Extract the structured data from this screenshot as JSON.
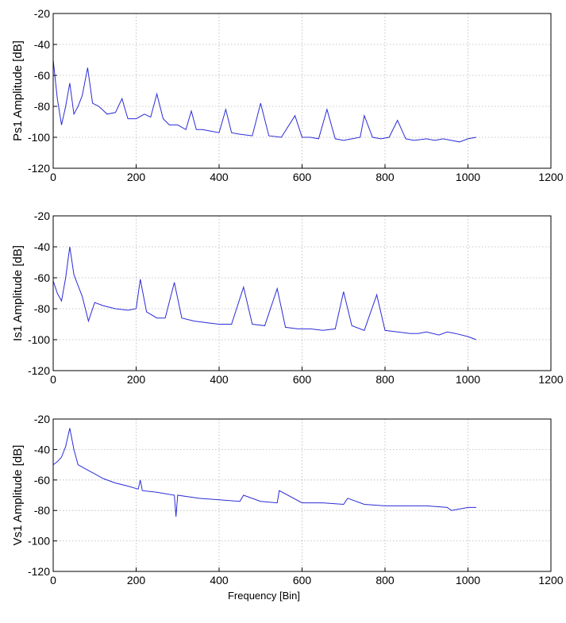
{
  "chart_data": [
    {
      "type": "line",
      "ylabel": "Ps1 Amplitude [dB]",
      "xlabel": "",
      "xlim": [
        0,
        1200
      ],
      "ylim": [
        -120,
        -20
      ],
      "xticks": [
        "0",
        "200",
        "400",
        "600",
        "800",
        "1000",
        "1200"
      ],
      "yticks": [
        "-20",
        "-40",
        "-60",
        "-80",
        "-100",
        "-120"
      ],
      "grid": true,
      "line_color": "#2b2bd6",
      "series": [
        {
          "x": [
            0,
            10,
            20,
            30,
            40,
            50,
            60,
            70,
            83,
            95,
            110,
            130,
            150,
            166,
            180,
            200,
            220,
            235,
            250,
            265,
            280,
            300,
            320,
            333,
            345,
            360,
            380,
            400,
            416,
            430,
            450,
            480,
            500,
            520,
            550,
            583,
            600,
            620,
            640,
            660,
            680,
            700,
            720,
            740,
            750,
            770,
            790,
            810,
            830,
            850,
            870,
            900,
            920,
            940,
            960,
            980,
            1000,
            1020
          ],
          "y": [
            -50,
            -75,
            -92,
            -80,
            -65,
            -85,
            -80,
            -73,
            -55,
            -78,
            -80,
            -85,
            -84,
            -75,
            -88,
            -88,
            -85,
            -87,
            -72,
            -88,
            -92,
            -92,
            -95,
            -83,
            -95,
            -95,
            -96,
            -97,
            -82,
            -97,
            -98,
            -99,
            -78,
            -99,
            -100,
            -86,
            -100,
            -100,
            -101,
            -82,
            -101,
            -102,
            -101,
            -100,
            -86,
            -100,
            -101,
            -100,
            -89,
            -101,
            -102,
            -101,
            -102,
            -101,
            -102,
            -103,
            -101,
            -100
          ]
        }
      ]
    },
    {
      "type": "line",
      "ylabel": "Is1 Amplitude [dB]",
      "xlabel": "",
      "xlim": [
        0,
        1200
      ],
      "ylim": [
        -120,
        -20
      ],
      "xticks": [
        "0",
        "200",
        "400",
        "600",
        "800",
        "1000",
        "1200"
      ],
      "yticks": [
        "-20",
        "-40",
        "-60",
        "-80",
        "-100",
        "-120"
      ],
      "grid": true,
      "line_color": "#2b2bd6",
      "series": [
        {
          "x": [
            0,
            10,
            20,
            30,
            40,
            50,
            60,
            70,
            85,
            100,
            120,
            150,
            180,
            200,
            210,
            225,
            250,
            270,
            292,
            310,
            340,
            370,
            400,
            430,
            459,
            480,
            510,
            540,
            560,
            590,
            620,
            650,
            680,
            700,
            720,
            750,
            780,
            800,
            830,
            860,
            880,
            900,
            930,
            950,
            970,
            1000,
            1020
          ],
          "y": [
            -62,
            -70,
            -75,
            -60,
            -40,
            -58,
            -65,
            -72,
            -88,
            -76,
            -78,
            -80,
            -81,
            -80,
            -61,
            -82,
            -86,
            -86,
            -63,
            -86,
            -88,
            -89,
            -90,
            -90,
            -66,
            -90,
            -91,
            -67,
            -92,
            -93,
            -93,
            -94,
            -93,
            -69,
            -91,
            -94,
            -71,
            -94,
            -95,
            -96,
            -96,
            -95,
            -97,
            -95,
            -96,
            -98,
            -100
          ]
        }
      ]
    },
    {
      "type": "line",
      "ylabel": "Vs1 Amplitude [dB]",
      "xlabel": "Frequency [Bin]",
      "xlim": [
        0,
        1200
      ],
      "ylim": [
        -120,
        -20
      ],
      "xticks": [
        "0",
        "200",
        "400",
        "600",
        "800",
        "1000",
        "1200"
      ],
      "yticks": [
        "-20",
        "-40",
        "-60",
        "-80",
        "-100",
        "-120"
      ],
      "grid": true,
      "line_color": "#2b2bd6",
      "series": [
        {
          "x": [
            0,
            10,
            20,
            30,
            40,
            50,
            60,
            80,
            100,
            120,
            150,
            180,
            205,
            210,
            215,
            250,
            292,
            296,
            300,
            350,
            400,
            450,
            459,
            500,
            540,
            545,
            600,
            650,
            700,
            710,
            750,
            800,
            850,
            900,
            950,
            960,
            1000,
            1020
          ],
          "y": [
            -50,
            -48,
            -45,
            -38,
            -26,
            -40,
            -50,
            -53,
            -56,
            -59,
            -62,
            -64,
            -66,
            -60,
            -67,
            -68,
            -70,
            -84,
            -70,
            -72,
            -73,
            -74,
            -70,
            -74,
            -75,
            -67,
            -75,
            -75,
            -76,
            -72,
            -76,
            -77,
            -77,
            -77,
            -78,
            -80,
            -78,
            -78
          ]
        }
      ]
    }
  ]
}
